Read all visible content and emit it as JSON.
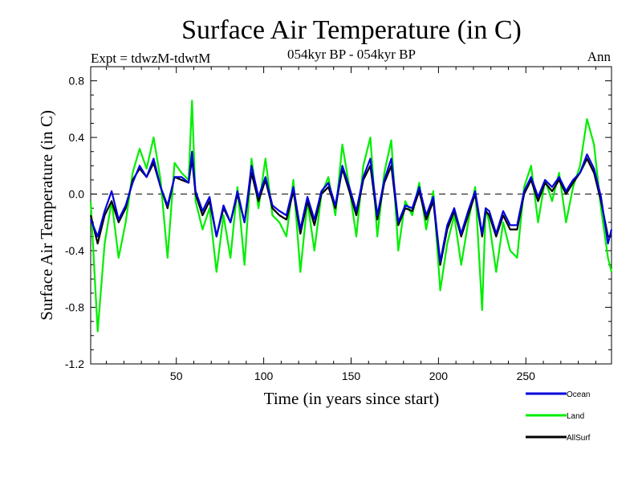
{
  "chart_data": {
    "type": "line",
    "title": "Surface Air Temperature (in C)",
    "subtitle": "054kyr BP - 054kyr BP",
    "experiment_label": "Expt = tdwzM-tdwtM",
    "period_label": "Ann",
    "xlabel": "Time (in years since start)",
    "ylabel": "Surface Air Temperature (in C)",
    "xlim": [
      1,
      299
    ],
    "ylim": [
      -1.2,
      0.9
    ],
    "x_ticks": [
      50,
      100,
      150,
      200,
      250
    ],
    "x_tick_labels": [
      "50",
      "100",
      "150",
      "200",
      "250"
    ],
    "y_ticks": [
      0.8,
      0.4,
      0.0,
      -0.4,
      -0.8,
      -1.2
    ],
    "y_tick_labels": [
      "0.8",
      "0.4",
      "0.0",
      "-0.4",
      "-0.8",
      "-1.2"
    ],
    "reference_line": 0.0,
    "legend_position": "bottom-right",
    "series": [
      {
        "name": "Land",
        "color": "#00ee00",
        "x": [
          1,
          5,
          9,
          13,
          17,
          21,
          25,
          29,
          33,
          37,
          41,
          45,
          49,
          53,
          57,
          59,
          61,
          65,
          69,
          73,
          77,
          81,
          85,
          89,
          93,
          97,
          101,
          105,
          109,
          113,
          117,
          121,
          125,
          129,
          133,
          137,
          141,
          145,
          149,
          153,
          157,
          161,
          165,
          169,
          173,
          177,
          181,
          185,
          189,
          193,
          197,
          201,
          205,
          209,
          213,
          217,
          221,
          225,
          227,
          229,
          233,
          237,
          241,
          245,
          249,
          253,
          257,
          261,
          265,
          269,
          273,
          277,
          281,
          285,
          289,
          293,
          297,
          299
        ],
        "values": [
          -0.05,
          -0.97,
          -0.35,
          -0.05,
          -0.45,
          -0.2,
          0.15,
          0.32,
          0.18,
          0.4,
          0.1,
          -0.45,
          0.22,
          0.15,
          0.1,
          0.66,
          -0.05,
          -0.25,
          -0.1,
          -0.55,
          -0.15,
          -0.45,
          0.05,
          -0.5,
          0.25,
          -0.1,
          0.25,
          -0.15,
          -0.2,
          -0.3,
          0.1,
          -0.55,
          -0.05,
          -0.4,
          0.0,
          0.12,
          -0.15,
          0.35,
          0.05,
          -0.3,
          0.2,
          0.4,
          -0.3,
          0.15,
          0.38,
          -0.4,
          -0.05,
          -0.15,
          0.08,
          -0.25,
          0.02,
          -0.68,
          -0.35,
          -0.15,
          -0.5,
          -0.2,
          0.05,
          -0.82,
          -0.1,
          -0.2,
          -0.55,
          -0.2,
          -0.4,
          -0.45,
          0.05,
          0.2,
          -0.2,
          0.1,
          -0.05,
          0.15,
          -0.2,
          0.05,
          0.2,
          0.53,
          0.35,
          -0.1,
          -0.45,
          -0.55
        ]
      },
      {
        "name": "AllSurf",
        "color": "#000000",
        "x": [
          1,
          5,
          9,
          13,
          17,
          21,
          25,
          29,
          33,
          37,
          41,
          45,
          49,
          53,
          57,
          59,
          61,
          65,
          69,
          73,
          77,
          81,
          85,
          89,
          93,
          97,
          101,
          105,
          109,
          113,
          117,
          121,
          125,
          129,
          133,
          137,
          141,
          145,
          149,
          153,
          157,
          161,
          165,
          169,
          173,
          177,
          181,
          185,
          189,
          193,
          197,
          201,
          205,
          209,
          213,
          217,
          221,
          225,
          227,
          229,
          233,
          237,
          241,
          245,
          249,
          253,
          257,
          261,
          265,
          269,
          273,
          277,
          281,
          285,
          289,
          293,
          297,
          299
        ],
        "values": [
          -0.15,
          -0.35,
          -0.15,
          -0.05,
          -0.2,
          -0.1,
          0.1,
          0.18,
          0.12,
          0.22,
          0.05,
          -0.1,
          0.12,
          0.1,
          0.08,
          0.25,
          0.0,
          -0.15,
          -0.05,
          -0.3,
          -0.1,
          -0.2,
          0.0,
          -0.2,
          0.15,
          -0.05,
          0.1,
          -0.1,
          -0.15,
          -0.18,
          0.02,
          -0.28,
          -0.05,
          -0.22,
          0.0,
          0.05,
          -0.1,
          0.18,
          0.02,
          -0.15,
          0.1,
          0.2,
          -0.18,
          0.08,
          0.2,
          -0.22,
          -0.1,
          -0.12,
          0.02,
          -0.18,
          -0.05,
          -0.5,
          -0.25,
          -0.12,
          -0.3,
          -0.15,
          0.0,
          -0.3,
          -0.12,
          -0.15,
          -0.3,
          -0.15,
          -0.25,
          -0.25,
          0.0,
          0.1,
          -0.05,
          0.08,
          0.02,
          0.1,
          0.0,
          0.08,
          0.15,
          0.25,
          0.15,
          -0.05,
          -0.3,
          -0.3
        ]
      },
      {
        "name": "Ocean",
        "color": "#0000dd",
        "x": [
          1,
          5,
          9,
          13,
          17,
          21,
          25,
          29,
          33,
          37,
          41,
          45,
          49,
          53,
          57,
          59,
          61,
          65,
          69,
          73,
          77,
          81,
          85,
          89,
          93,
          97,
          101,
          105,
          109,
          113,
          117,
          121,
          125,
          129,
          133,
          137,
          141,
          145,
          149,
          153,
          157,
          161,
          165,
          169,
          173,
          177,
          181,
          185,
          189,
          193,
          197,
          201,
          205,
          209,
          213,
          217,
          221,
          225,
          227,
          229,
          233,
          237,
          241,
          245,
          249,
          253,
          257,
          261,
          265,
          269,
          273,
          277,
          281,
          285,
          289,
          293,
          297,
          299
        ],
        "values": [
          -0.18,
          -0.3,
          -0.12,
          0.02,
          -0.18,
          -0.08,
          0.08,
          0.2,
          0.12,
          0.25,
          0.05,
          -0.08,
          0.12,
          0.12,
          0.08,
          0.3,
          0.02,
          -0.12,
          -0.02,
          -0.3,
          -0.08,
          -0.2,
          0.02,
          -0.2,
          0.2,
          -0.02,
          0.12,
          -0.08,
          -0.12,
          -0.15,
          0.05,
          -0.25,
          -0.02,
          -0.18,
          0.02,
          0.08,
          -0.08,
          0.2,
          0.05,
          -0.12,
          0.12,
          0.25,
          -0.15,
          0.1,
          0.25,
          -0.2,
          -0.08,
          -0.1,
          0.05,
          -0.15,
          -0.02,
          -0.48,
          -0.22,
          -0.1,
          -0.28,
          -0.12,
          0.02,
          -0.28,
          -0.1,
          -0.12,
          -0.28,
          -0.12,
          -0.22,
          -0.22,
          0.02,
          0.12,
          -0.02,
          0.1,
          0.05,
          0.12,
          0.02,
          0.1,
          0.15,
          0.28,
          0.18,
          -0.02,
          -0.35,
          -0.25
        ]
      }
    ]
  }
}
